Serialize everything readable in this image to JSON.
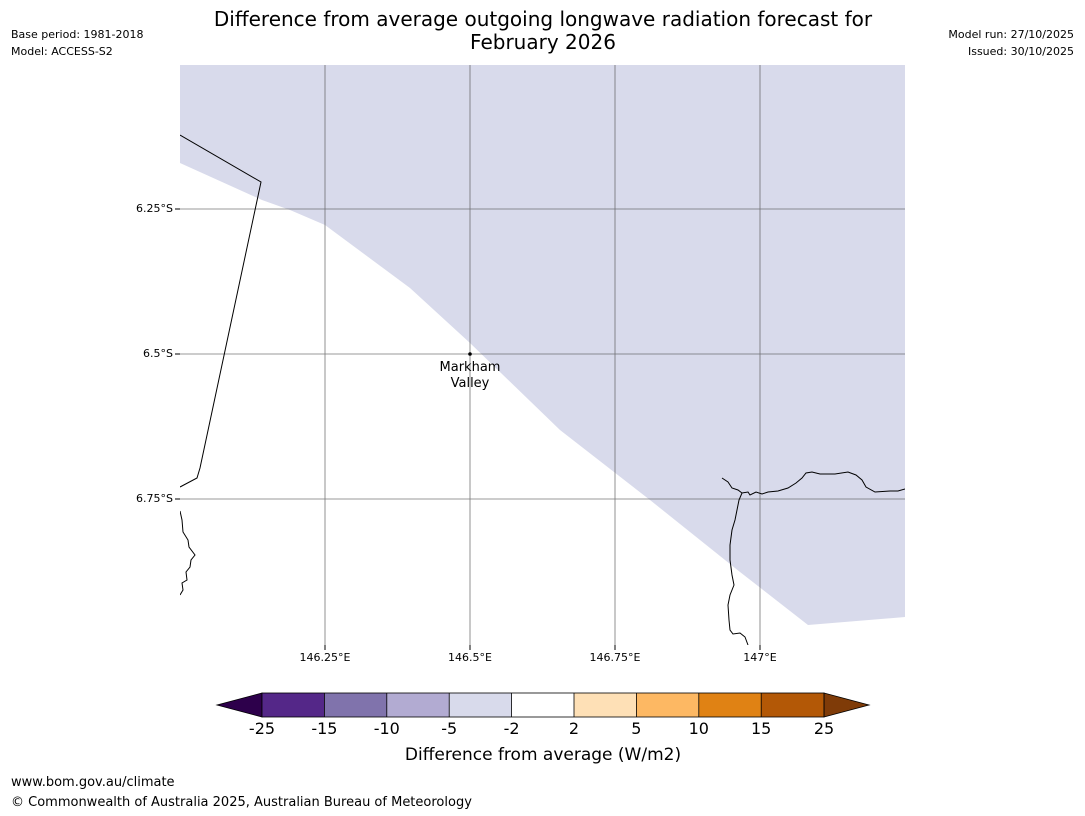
{
  "header": {
    "title_line1": "Difference from average outgoing longwave radiation forecast for",
    "title_line2": "February 2026",
    "base_period": "Base period: 1981-2018",
    "model": "Model: ACCESS-S2",
    "model_run": "Model run: 27/10/2025",
    "issued": "Issued: 30/10/2025"
  },
  "map": {
    "lat_labels": [
      "6.25°S",
      "6.5°S",
      "6.75°S"
    ],
    "lon_labels": [
      "146.25°E",
      "146.5°E",
      "146.75°E",
      "147°E"
    ],
    "place": {
      "name_line1": "Markham",
      "name_line2": "Valley"
    },
    "anomaly_class_shown": "-5 to -2"
  },
  "colorbar": {
    "title": "Difference from average (W/m2)",
    "ticks": [
      "-25",
      "-15",
      "-10",
      "-5",
      "-2",
      "2",
      "5",
      "10",
      "15",
      "25"
    ],
    "colors": {
      "below_min": "#2d004b",
      "c1": "#542788",
      "c2": "#8073ac",
      "c3": "#b2abd2",
      "c4": "#d8daeb",
      "c5": "#ffffff",
      "c6": "#fee0b6",
      "c7": "#fdb863",
      "c8": "#e08214",
      "c9": "#b35806",
      "above_max": "#7f3b08"
    }
  },
  "footer": {
    "url": "www.bom.gov.au/climate",
    "copyright": "© Commonwealth of Australia 2025, Australian Bureau of Meteorology"
  }
}
